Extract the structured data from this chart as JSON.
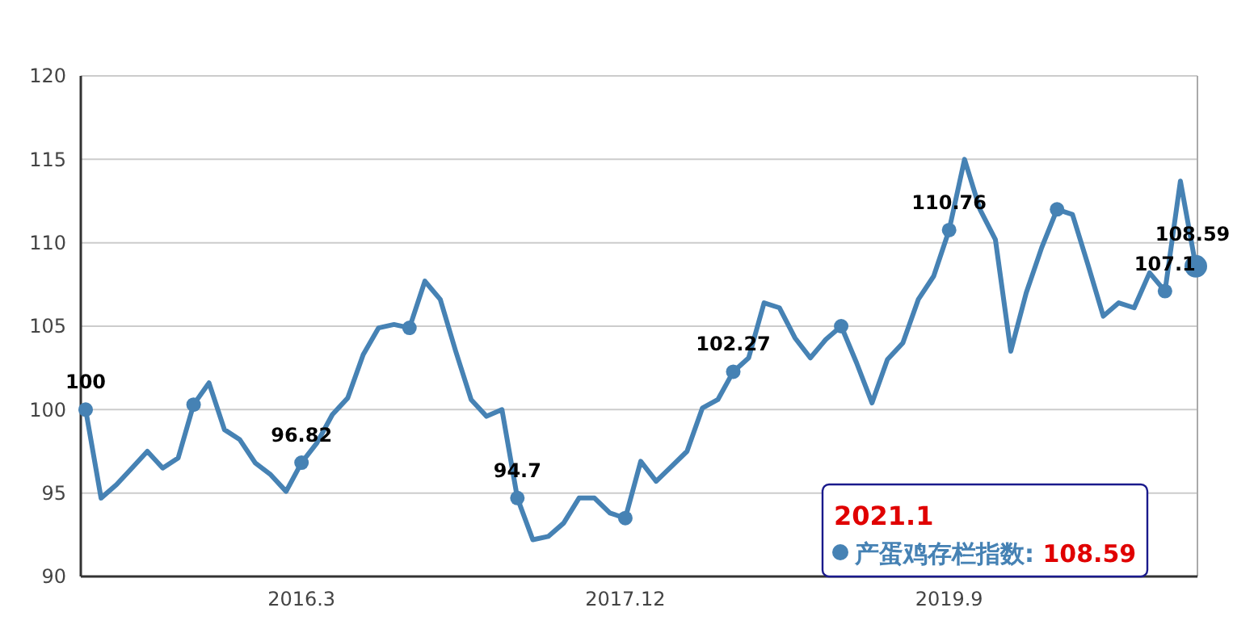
{
  "chart_data": {
    "type": "line",
    "categories": [
      null,
      null,
      null,
      null,
      null,
      null,
      null,
      null,
      null,
      null,
      null,
      null,
      null,
      null,
      "2016.3",
      null,
      null,
      null,
      null,
      null,
      null,
      null,
      null,
      null,
      null,
      null,
      null,
      null,
      null,
      null,
      null,
      null,
      null,
      null,
      null,
      "2017.12",
      null,
      null,
      null,
      null,
      null,
      null,
      null,
      null,
      null,
      null,
      null,
      null,
      null,
      null,
      null,
      null,
      null,
      null,
      null,
      null,
      "2019.9",
      null,
      null,
      null,
      null,
      null,
      null,
      null,
      null,
      null,
      null,
      null,
      null,
      null,
      null,
      null,
      null
    ],
    "series": [
      {
        "name": "产蛋鸡存栏指数",
        "color": "#4682b4",
        "values": [
          100,
          94.7,
          95.5,
          96.5,
          97.5,
          96.5,
          97.1,
          100.3,
          101.6,
          98.8,
          98.2,
          96.8,
          96.1,
          95.1,
          96.82,
          98.0,
          99.7,
          100.7,
          103.3,
          104.9,
          105.1,
          104.9,
          107.7,
          106.6,
          103.5,
          100.6,
          99.6,
          100.0,
          94.7,
          92.2,
          92.4,
          93.2,
          94.7,
          94.7,
          93.8,
          93.5,
          96.9,
          95.7,
          96.6,
          97.5,
          100.1,
          100.6,
          102.27,
          103.1,
          106.4,
          106.1,
          104.3,
          103.1,
          104.2,
          105.0,
          102.8,
          100.4,
          103.0,
          104.0,
          106.6,
          108.0,
          110.76,
          115.0,
          112.0,
          110.2,
          103.5,
          107.0,
          109.7,
          112.0,
          111.7,
          108.7,
          105.6,
          106.4,
          106.1,
          108.2,
          107.1,
          113.7,
          108.59
        ],
        "value_labels": [
          "100",
          null,
          null,
          null,
          null,
          null,
          null,
          null,
          null,
          null,
          null,
          null,
          null,
          null,
          "96.82",
          null,
          null,
          null,
          null,
          null,
          null,
          null,
          null,
          null,
          null,
          null,
          null,
          null,
          "94.7",
          null,
          null,
          null,
          null,
          null,
          null,
          null,
          null,
          null,
          null,
          null,
          null,
          null,
          "102.27",
          null,
          null,
          null,
          null,
          null,
          null,
          null,
          null,
          null,
          null,
          null,
          null,
          null,
          "110.76",
          null,
          null,
          null,
          null,
          null,
          null,
          null,
          null,
          null,
          null,
          null,
          null,
          null,
          "107.1",
          null,
          "108.59"
        ]
      }
    ],
    "ylim": [
      90,
      120
    ],
    "yticks": [
      90,
      95,
      100,
      105,
      110,
      115,
      120
    ],
    "grid": "y",
    "legend": "bottom right",
    "annotations": [
      "2021.1",
      ":",
      "108.59"
    ]
  }
}
